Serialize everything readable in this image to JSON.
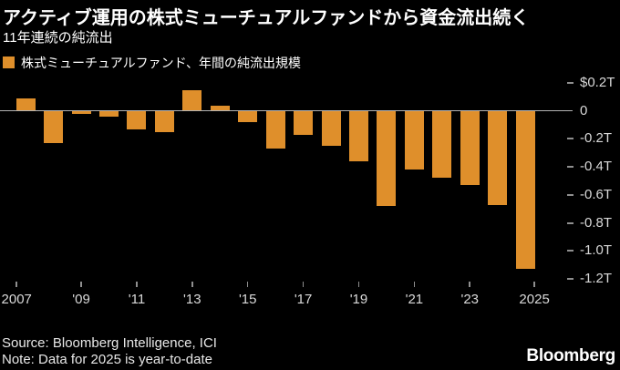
{
  "header": {
    "title": "アクティブ運用の株式ミューチュアルファンドから資金流出続く",
    "subtitle": "11年連続の純流出"
  },
  "legend": {
    "label": "株式ミューチュアルファンド、年間の純流出規模",
    "swatch_color": "#DF8F2B"
  },
  "chart_data": {
    "type": "bar",
    "title": "株式ミューチュアルファンド、年間の純流出規模",
    "categories": [
      2007,
      2008,
      2009,
      2010,
      2011,
      2012,
      2013,
      2014,
      2015,
      2016,
      2017,
      2018,
      2019,
      2020,
      2021,
      2022,
      2023,
      2024,
      2025
    ],
    "values": [
      0.09,
      -0.23,
      -0.02,
      -0.04,
      -0.13,
      -0.15,
      0.15,
      0.04,
      -0.08,
      -0.27,
      -0.17,
      -0.25,
      -0.36,
      -0.68,
      -0.42,
      -0.48,
      -0.53,
      -0.67,
      -1.13
    ],
    "ylim": [
      -1.2,
      0.2
    ],
    "grid": false,
    "legend_position": "top-left",
    "bar_color": "#DF8F2B",
    "y_ticks": [
      {
        "value": 0.2,
        "label": "$0.2T"
      },
      {
        "value": 0,
        "label": "0"
      },
      {
        "value": -0.2,
        "label": "-0.2T"
      },
      {
        "value": -0.4,
        "label": "-0.4T"
      },
      {
        "value": -0.6,
        "label": "-0.6T"
      },
      {
        "value": -0.8,
        "label": "-0.8T"
      },
      {
        "value": -1.0,
        "label": "-1.0T"
      },
      {
        "value": -1.2,
        "label": "-1.2T"
      }
    ],
    "x_ticks": [
      {
        "index": 0,
        "label": "2007"
      },
      {
        "index": 2,
        "label": "'09"
      },
      {
        "index": 4,
        "label": "'11"
      },
      {
        "index": 6,
        "label": "'13"
      },
      {
        "index": 8,
        "label": "'15"
      },
      {
        "index": 10,
        "label": "'17"
      },
      {
        "index": 12,
        "label": "'19"
      },
      {
        "index": 14,
        "label": "'21"
      },
      {
        "index": 16,
        "label": "'23"
      },
      {
        "index": 18,
        "label": "2025"
      }
    ]
  },
  "footer": {
    "source": "Source: Bloomberg Intelligence, ICI",
    "note": "Note: Data for 2025 is year-to-date",
    "logo": "Bloomberg"
  },
  "colors": {
    "background": "#000000",
    "axis_text": "#D9D9D9",
    "zero_line": "#B3B3B3",
    "title_text": "#FFFFFF",
    "footer_text": "#E8E8E8"
  }
}
